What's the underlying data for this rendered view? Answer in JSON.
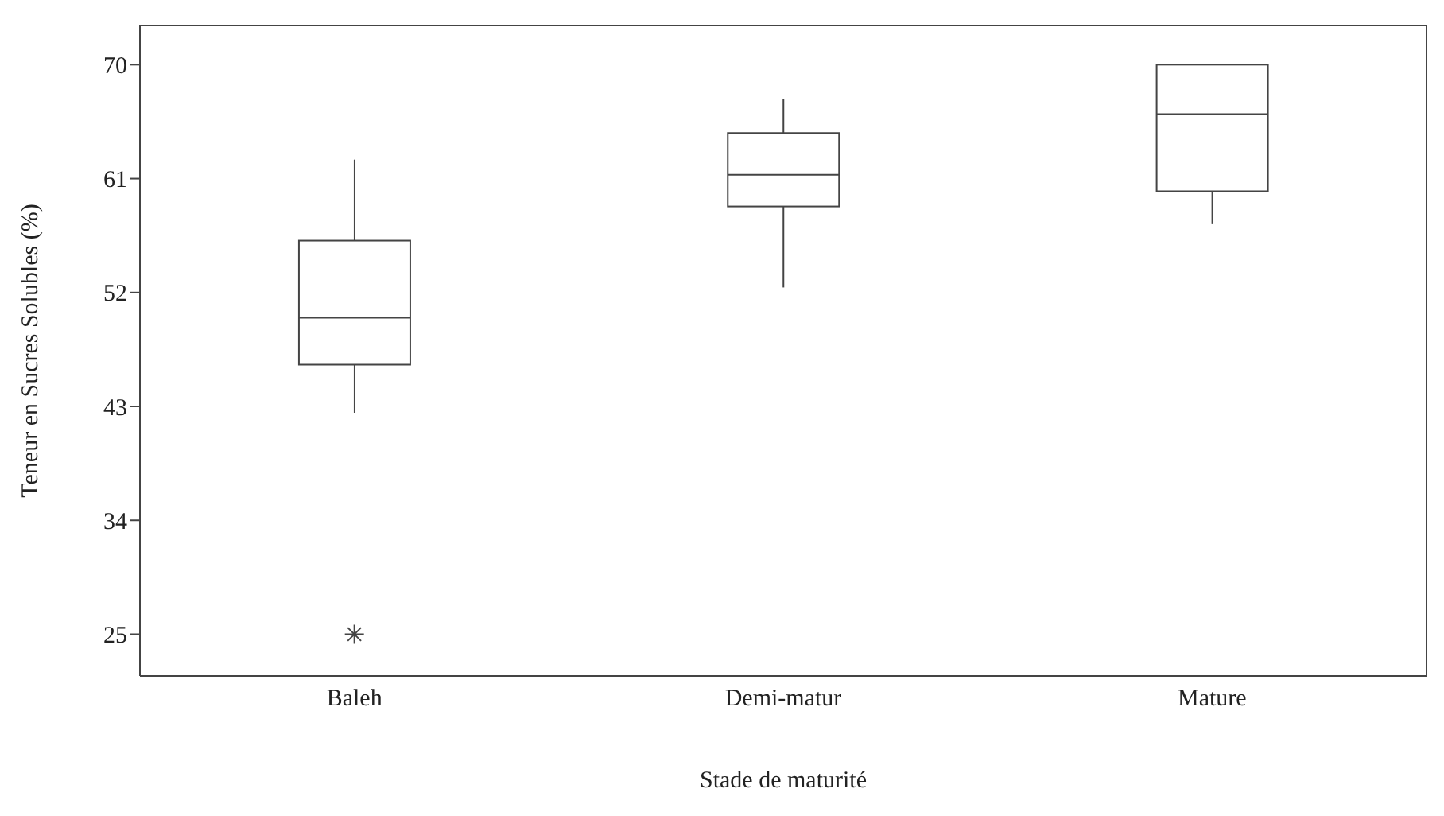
{
  "chart_data": {
    "type": "box",
    "xlabel": "Stade de maturité",
    "ylabel": "Teneur en Sucres Solubles (%)",
    "categories": [
      "Baleh",
      "Demi-matur",
      "Mature"
    ],
    "boxes": [
      {
        "low": 42.5,
        "q1": 46.3,
        "median": 50,
        "q3": 56.1,
        "high": 62.5,
        "outliers": [
          25
        ]
      },
      {
        "low": 52.4,
        "q1": 58.8,
        "median": 61.3,
        "q3": 64.6,
        "high": 67.3
      },
      {
        "low": 57.4,
        "q1": 60,
        "median": 66.1,
        "q3": 70,
        "high": 70
      }
    ],
    "ylim": [
      21.7,
      73.1
    ],
    "yticks": [
      25,
      34,
      43,
      52,
      61,
      70
    ]
  }
}
